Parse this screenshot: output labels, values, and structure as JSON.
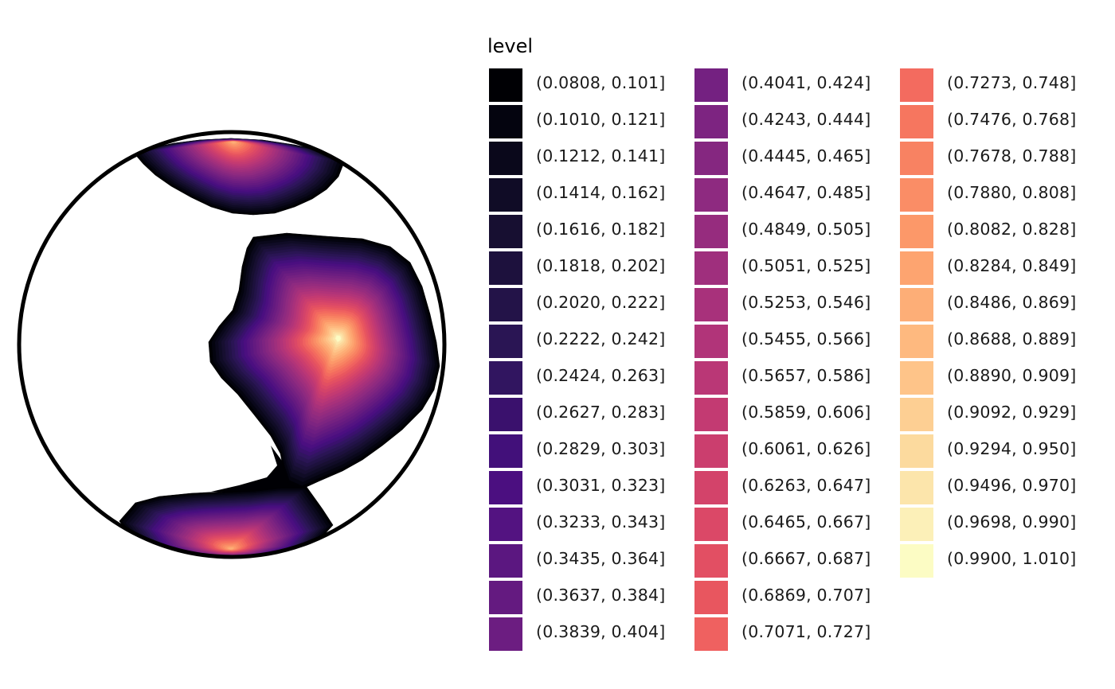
{
  "chart_data": {
    "type": "heatmap",
    "subtype": "filled-contour-in-circle",
    "title": "",
    "xlabel": "",
    "ylabel": "",
    "legend": {
      "title": "level",
      "placement": "right",
      "columns": 3,
      "entries": [
        {
          "label": "(0.0808, 0.101]",
          "color": "#000004"
        },
        {
          "label": "(0.1010, 0.121]",
          "color": "#04040f"
        },
        {
          "label": "(0.1212, 0.141]",
          "color": "#0a081b"
        },
        {
          "label": "(0.1414, 0.162]",
          "color": "#100c26"
        },
        {
          "label": "(0.1616, 0.182]",
          "color": "#170f31"
        },
        {
          "label": "(0.1818, 0.202]",
          "color": "#1d113d"
        },
        {
          "label": "(0.2020, 0.222]",
          "color": "#231348"
        },
        {
          "label": "(0.2222, 0.242]",
          "color": "#2a1554"
        },
        {
          "label": "(0.2424, 0.263]",
          "color": "#311560"
        },
        {
          "label": "(0.2627, 0.283]",
          "color": "#3a116d"
        },
        {
          "label": "(0.2829, 0.303]",
          "color": "#42107a"
        },
        {
          "label": "(0.3031, 0.323]",
          "color": "#4b0f80"
        },
        {
          "label": "(0.3233, 0.343]",
          "color": "#531381"
        },
        {
          "label": "(0.3435, 0.364]",
          "color": "#5b1780"
        },
        {
          "label": "(0.3637, 0.384]",
          "color": "#641a80"
        },
        {
          "label": "(0.3839, 0.404]",
          "color": "#6c1d81"
        },
        {
          "label": "(0.4041, 0.424]",
          "color": "#742181"
        },
        {
          "label": "(0.4243, 0.444]",
          "color": "#7d2481"
        },
        {
          "label": "(0.4445, 0.465]",
          "color": "#852780"
        },
        {
          "label": "(0.4647, 0.485]",
          "color": "#8e2a80"
        },
        {
          "label": "(0.4849, 0.505]",
          "color": "#962c7e"
        },
        {
          "label": "(0.5051, 0.525]",
          "color": "#9f2f7d"
        },
        {
          "label": "(0.5253, 0.546]",
          "color": "#a8317b"
        },
        {
          "label": "(0.5455, 0.566]",
          "color": "#b13479"
        },
        {
          "label": "(0.5657, 0.586]",
          "color": "#ba3776"
        },
        {
          "label": "(0.5859, 0.606]",
          "color": "#c33a72"
        },
        {
          "label": "(0.6061, 0.626]",
          "color": "#cb3e6e"
        },
        {
          "label": "(0.6263, 0.647]",
          "color": "#d3436a"
        },
        {
          "label": "(0.6465, 0.667]",
          "color": "#db4867"
        },
        {
          "label": "(0.6667, 0.687]",
          "color": "#e24f63"
        },
        {
          "label": "(0.6869, 0.707]",
          "color": "#e8565f"
        },
        {
          "label": "(0.7071, 0.727]",
          "color": "#ef6160"
        },
        {
          "label": "(0.7273, 0.748]",
          "color": "#f36b5f"
        },
        {
          "label": "(0.7476, 0.768]",
          "color": "#f6765f"
        },
        {
          "label": "(0.7678, 0.788]",
          "color": "#f88262"
        },
        {
          "label": "(0.7880, 0.808]",
          "color": "#fa8d66"
        },
        {
          "label": "(0.8082, 0.828]",
          "color": "#fc9869"
        },
        {
          "label": "(0.8284, 0.849]",
          "color": "#fda470"
        },
        {
          "label": "(0.8486, 0.869]",
          "color": "#fdae77"
        },
        {
          "label": "(0.8688, 0.889]",
          "color": "#feb97f"
        },
        {
          "label": "(0.8890, 0.909]",
          "color": "#fec489"
        },
        {
          "label": "(0.9092, 0.929]",
          "color": "#fdcf93"
        },
        {
          "label": "(0.9294, 0.950]",
          "color": "#fcda9e"
        },
        {
          "label": "(0.9496, 0.970]",
          "color": "#fce5ab"
        },
        {
          "label": "(0.9698, 0.990]",
          "color": "#fcf0b8"
        },
        {
          "label": "(0.9900, 1.010]",
          "color": "#fcfcc4"
        }
      ]
    },
    "circle_outline_color": "#000000",
    "regions": [
      {
        "location": "top",
        "peak_level": 0.85
      },
      {
        "location": "center-right",
        "peak_level": 1.0
      },
      {
        "location": "bottom",
        "peak_level": 0.85
      }
    ]
  }
}
